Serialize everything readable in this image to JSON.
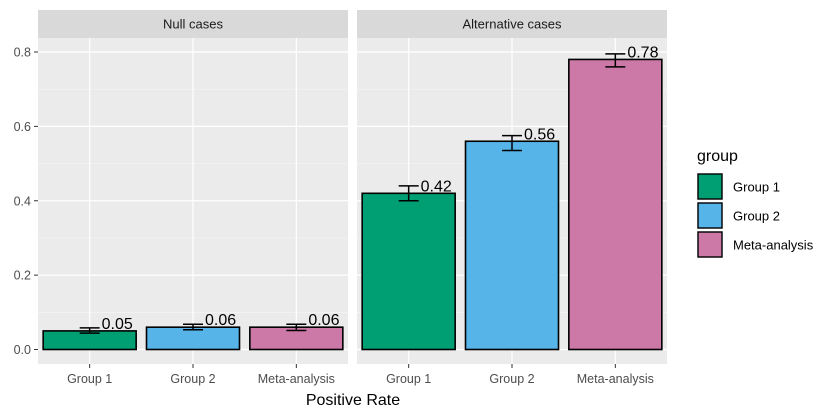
{
  "chart_data": {
    "type": "bar",
    "xlabel": "Positive Rate",
    "ylabel": "",
    "ylim": [
      0,
      0.8
    ],
    "yticks": [
      "0.0",
      "0.2",
      "0.4",
      "0.6",
      "0.8"
    ],
    "ytick_values": [
      0,
      0.2,
      0.4,
      0.6,
      0.8
    ],
    "legend": {
      "title": "group",
      "placement": "right",
      "entries": [
        {
          "label": "Group 1",
          "color": "#009E73"
        },
        {
          "label": "Group 2",
          "color": "#56B4E9"
        },
        {
          "label": "Meta-analysis",
          "color": "#CC79A7"
        }
      ]
    },
    "panels": [
      {
        "title": "Null cases",
        "categories": [
          "Group 1",
          "Group 2",
          "Meta-analysis"
        ],
        "values": [
          0.05,
          0.06,
          0.06
        ],
        "value_labels": [
          "0.05",
          "0.06",
          "0.06"
        ],
        "error_low": [
          0.044,
          0.053,
          0.051
        ],
        "error_high": [
          0.058,
          0.068,
          0.068
        ]
      },
      {
        "title": "Alternative cases",
        "categories": [
          "Group 1",
          "Group 2",
          "Meta-analysis"
        ],
        "values": [
          0.42,
          0.56,
          0.78
        ],
        "value_labels": [
          "0.42",
          "0.56",
          "0.78"
        ],
        "error_low": [
          0.4,
          0.535,
          0.76
        ],
        "error_high": [
          0.44,
          0.575,
          0.795
        ]
      }
    ]
  }
}
